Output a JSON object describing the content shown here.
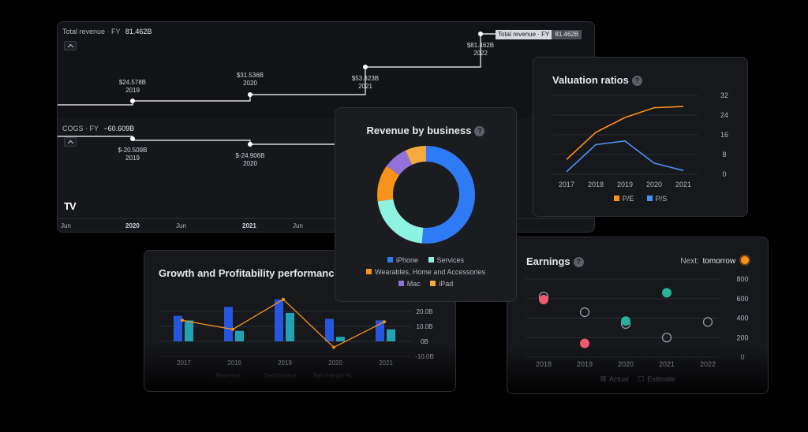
{
  "revenue_chart": {
    "revenue_label": "Total revenue · FY",
    "revenue_value": "81.462B",
    "revenue_tooltip_label": "Total revenue · FY",
    "revenue_tooltip_value": "81.462B",
    "cogs_label": "COGS · FY",
    "cogs_value": "−60.609B",
    "logo": "TV",
    "revenue_points": [
      {
        "value": "$24.578B",
        "year": "2019"
      },
      {
        "value": "$31.536B",
        "year": "2020"
      },
      {
        "value": "$53.823B",
        "year": "2021"
      },
      {
        "value": "$81.462B",
        "year": "2022"
      }
    ],
    "cogs_points": [
      {
        "value": "$-20.509B",
        "year": "2019"
      },
      {
        "value": "$-24.906B",
        "year": "2020"
      }
    ],
    "time_axis": [
      "Jun",
      "2020",
      "Jun",
      "2021",
      "Jun"
    ]
  },
  "revenue_by_business": {
    "title": "Revenue by business",
    "legend": [
      {
        "name": "iPhone",
        "color": "#2f7bf5"
      },
      {
        "name": "Services",
        "color": "#8df2e0"
      },
      {
        "name": "Wearables, Home and Accessories",
        "color": "#f7931a"
      },
      {
        "name": "Mac",
        "color": "#9272d8"
      },
      {
        "name": "iPad",
        "color": "#f7a940"
      }
    ]
  },
  "valuation": {
    "title": "Valuation ratios",
    "chart_data": {
      "type": "line",
      "x": [
        2017,
        2018,
        2019,
        2020,
        2021
      ],
      "series": [
        {
          "name": "P/E",
          "color": "#f7931a",
          "values": [
            6,
            17,
            23,
            27,
            27.5
          ]
        },
        {
          "name": "P/S",
          "color": "#4a90f0",
          "values": [
            1,
            12,
            13.5,
            4.5,
            1.5
          ]
        }
      ],
      "ylim": [
        0,
        32
      ],
      "yticks": [
        "32",
        "24",
        "16",
        "8",
        "0"
      ],
      "xticks": [
        "2017",
        "2018",
        "2019",
        "2020",
        "2021"
      ]
    }
  },
  "growth": {
    "title": "Growth and Profitability performance",
    "chart_data": {
      "type": "bar",
      "categories": [
        "2017",
        "2018",
        "2019",
        "2020",
        "2021"
      ],
      "series": [
        {
          "name": "bar-dark",
          "color": "#2962ff",
          "values": [
            17,
            23,
            28,
            15,
            14
          ]
        },
        {
          "name": "bar-light",
          "color": "#26c6da",
          "values": [
            14,
            7,
            19,
            3,
            8
          ]
        }
      ],
      "line": [
        14,
        8,
        28,
        -4,
        13
      ],
      "ylim": [
        -10,
        30
      ],
      "yticks": [
        "20.0B",
        "10.0B",
        "0B",
        "-10.0B"
      ],
      "legend": [
        "Revenue",
        "Net income",
        "Net margin %"
      ]
    }
  },
  "earnings": {
    "title": "Earnings",
    "next_label": "Next:",
    "next_value": "tomorrow",
    "chart_data": {
      "type": "scatter",
      "x": [
        "2018",
        "2019",
        "2020",
        "2021",
        "2022"
      ],
      "estimate": [
        620,
        460,
        340,
        200,
        360
      ],
      "actual": [
        590,
        140,
        370,
        660,
        null
      ],
      "actual_colors": [
        "#f05a6e",
        "#f05a6e",
        "#26b39a",
        "#26b39a",
        ""
      ],
      "ylim": [
        0,
        800
      ],
      "yticks": [
        "800",
        "600",
        "400",
        "200",
        "0"
      ],
      "legend": [
        "Actual",
        "Estimate"
      ]
    }
  }
}
